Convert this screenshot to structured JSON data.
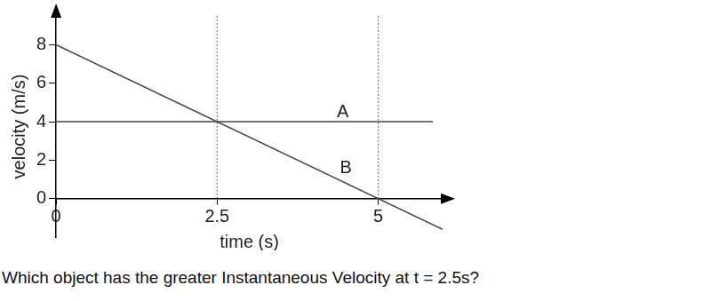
{
  "chart_data": {
    "type": "line",
    "x_label": "time (s)",
    "y_label": "velocity (m/s)",
    "caption": "Which object has the greater Instantaneous Velocity at t = 2.5s?",
    "series": [
      {
        "color": "#444444",
        "x": [
          0,
          5.85
        ],
        "values": [
          4,
          4
        ],
        "marker": "none",
        "line_style": "solid"
      },
      {
        "color": "#444444",
        "x": [
          0,
          6
        ],
        "values": [
          8,
          -1.6
        ],
        "marker": "none",
        "line_style": "solid"
      }
    ],
    "annotations": [
      {
        "text": "A",
        "x": 4.45,
        "y": 4.5
      },
      {
        "text": "B",
        "x": 4.5,
        "y": 1.6
      }
    ],
    "vlines": [
      2.5,
      5
    ],
    "xlim": [
      0,
      6
    ],
    "ylim": [
      -2,
      9.5
    ],
    "xticks": [
      0,
      2.5,
      5
    ],
    "yticks": [
      0,
      2,
      4,
      6,
      8
    ],
    "grid": false
  }
}
